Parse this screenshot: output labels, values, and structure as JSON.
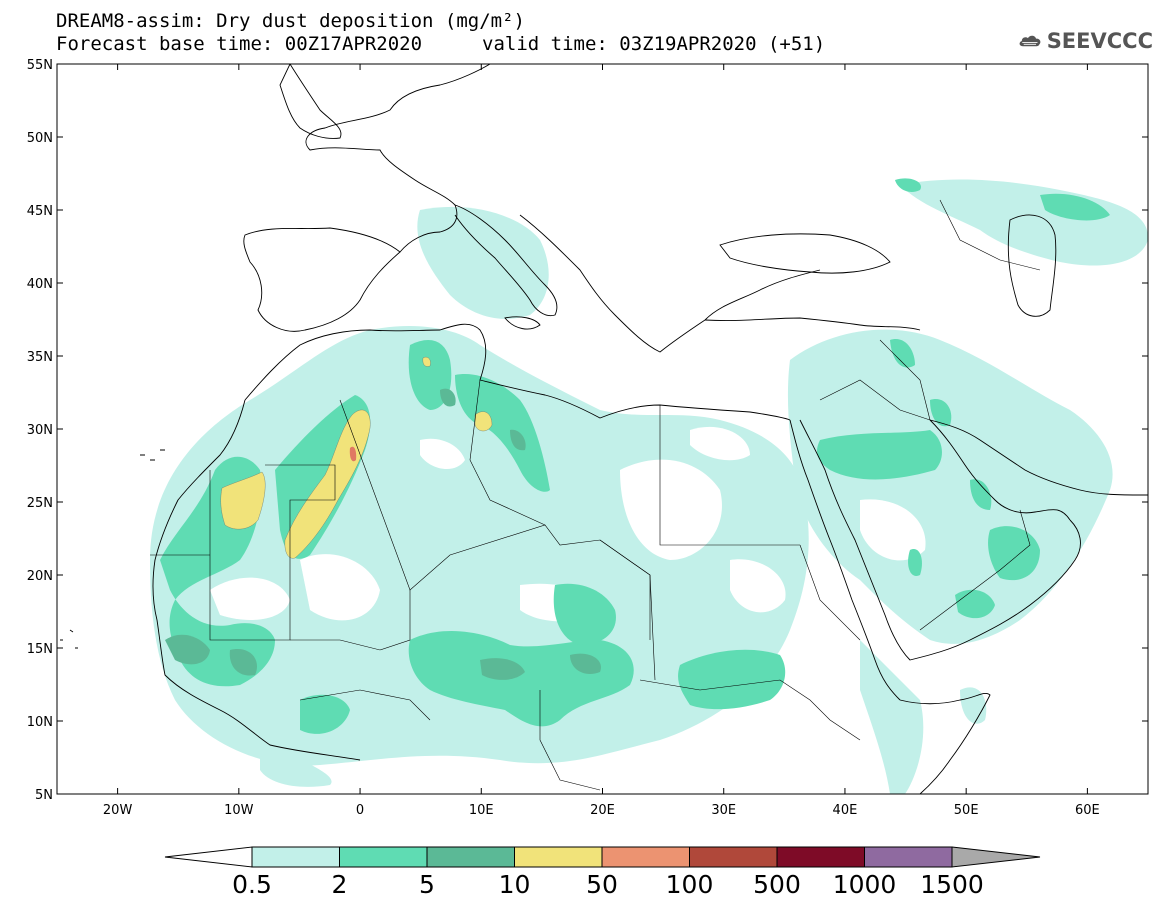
{
  "header": {
    "title_line1": "DREAM8-assim: Dry dust deposition (mg/m²)",
    "title_line2": "Forecast base time: 00Z17APR2020",
    "valid_time": "valid time: 03Z19APR2020 (+51)"
  },
  "logo": {
    "text": "SEEVCCC",
    "icon": "cloud-icon"
  },
  "map": {
    "lon_range": [
      -25,
      65
    ],
    "lat_range": [
      5,
      55
    ],
    "lat_labels": [
      "55N",
      "50N",
      "45N",
      "40N",
      "35N",
      "30N",
      "25N",
      "20N",
      "15N",
      "10N",
      "5N"
    ],
    "lon_labels": [
      "20W",
      "10W",
      "0",
      "10E",
      "20E",
      "30E",
      "40E",
      "50E",
      "60E"
    ]
  },
  "colorbar": {
    "labels": [
      "0.5",
      "2",
      "5",
      "10",
      "50",
      "100",
      "500",
      "1000",
      "1500"
    ],
    "colors": [
      "#c2f0e9",
      "#5fdcb3",
      "#5bb996",
      "#f1e37a",
      "#ec9371",
      "#b0483a",
      "#7e0b27",
      "#8f6aa0",
      "#a9a9a9"
    ]
  }
}
